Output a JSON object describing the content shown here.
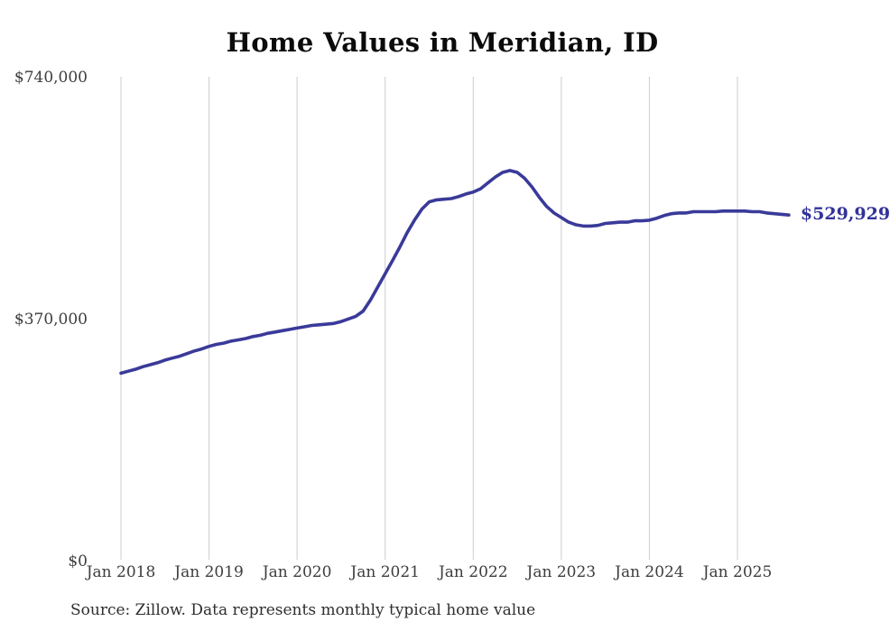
{
  "page": {
    "background_color": "#ffffff"
  },
  "chart_data": {
    "type": "line",
    "title": "Home Values in Meridian, ID",
    "source_note": "Source: Zillow. Data represents monthly typical home value",
    "end_label": "$529,929",
    "current_value": 529929,
    "line_color": "#3a3a9a",
    "end_label_color": "#32329a",
    "gridline_color": "#cccccc",
    "axis_label_color": "#3d3d3d",
    "ylim": [
      0,
      740000
    ],
    "grid": "vertical-only",
    "legend": false,
    "y_ticks": [
      {
        "value": 0,
        "label": "$0"
      },
      {
        "value": 370000,
        "label": "$370,000"
      },
      {
        "value": 740000,
        "label": "$740,000"
      }
    ],
    "x_ticks": [
      {
        "index": 0,
        "label": "Jan 2018"
      },
      {
        "index": 12,
        "label": "Jan 2019"
      },
      {
        "index": 24,
        "label": "Jan 2020"
      },
      {
        "index": 36,
        "label": "Jan 2021"
      },
      {
        "index": 48,
        "label": "Jan 2022"
      },
      {
        "index": 60,
        "label": "Jan 2023"
      },
      {
        "index": 72,
        "label": "Jan 2024"
      },
      {
        "index": 84,
        "label": "Jan 2025"
      }
    ],
    "x": [
      "2018-01",
      "2018-02",
      "2018-03",
      "2018-04",
      "2018-05",
      "2018-06",
      "2018-07",
      "2018-08",
      "2018-09",
      "2018-10",
      "2018-11",
      "2018-12",
      "2019-01",
      "2019-02",
      "2019-03",
      "2019-04",
      "2019-05",
      "2019-06",
      "2019-07",
      "2019-08",
      "2019-09",
      "2019-10",
      "2019-11",
      "2019-12",
      "2020-01",
      "2020-02",
      "2020-03",
      "2020-04",
      "2020-05",
      "2020-06",
      "2020-07",
      "2020-08",
      "2020-09",
      "2020-10",
      "2020-11",
      "2020-12",
      "2021-01",
      "2021-02",
      "2021-03",
      "2021-04",
      "2021-05",
      "2021-06",
      "2021-07",
      "2021-08",
      "2021-09",
      "2021-10",
      "2021-11",
      "2021-12",
      "2022-01",
      "2022-02",
      "2022-03",
      "2022-04",
      "2022-05",
      "2022-06",
      "2022-07",
      "2022-08",
      "2022-09",
      "2022-10",
      "2022-11",
      "2022-12",
      "2023-01",
      "2023-02",
      "2023-03",
      "2023-04",
      "2023-05",
      "2023-06",
      "2023-07",
      "2023-08",
      "2023-09",
      "2023-10",
      "2023-11",
      "2023-12",
      "2024-01",
      "2024-02",
      "2024-03",
      "2024-04",
      "2024-05",
      "2024-06",
      "2024-07",
      "2024-08",
      "2024-09",
      "2024-10",
      "2024-11",
      "2024-12",
      "2025-01",
      "2025-02",
      "2025-03",
      "2025-04",
      "2025-05",
      "2025-06",
      "2025-07",
      "2025-08"
    ],
    "values": [
      288000,
      291000,
      294000,
      298000,
      301000,
      304000,
      308000,
      311000,
      314000,
      318000,
      322000,
      325000,
      329000,
      332000,
      334000,
      337000,
      339000,
      341000,
      344000,
      346000,
      349000,
      351000,
      353000,
      355000,
      357000,
      359000,
      361000,
      362000,
      363000,
      364000,
      367000,
      371000,
      375000,
      383000,
      400000,
      420000,
      440000,
      460000,
      481000,
      503000,
      522000,
      539000,
      550000,
      553000,
      554000,
      555000,
      558000,
      562000,
      565000,
      570000,
      579000,
      588000,
      595000,
      598000,
      595000,
      586000,
      573000,
      557000,
      543000,
      533000,
      526000,
      519000,
      515000,
      513000,
      513000,
      514000,
      517000,
      518000,
      519000,
      519000,
      521000,
      521000,
      522000,
      525000,
      529000,
      532000,
      533000,
      533000,
      535000,
      535000,
      535000,
      535000,
      536000,
      536000,
      536000,
      536000,
      535000,
      535000,
      533000,
      532000,
      531000,
      529929
    ]
  }
}
